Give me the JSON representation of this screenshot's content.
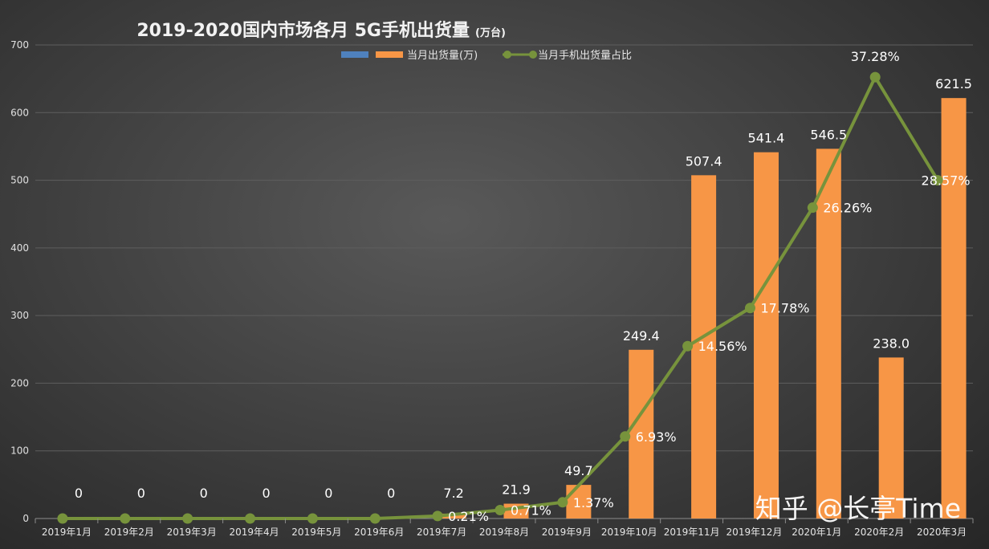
{
  "watermark": "知乎 @长亭Time",
  "chart_data": {
    "type": "bar",
    "title": "2019-2020国内市场各月 5G手机出货量",
    "title_unit": "(万台)",
    "ylim": [
      0,
      700
    ],
    "yticks": [
      0,
      100,
      200,
      300,
      400,
      500,
      600,
      700
    ],
    "categories": [
      "2019年1月",
      "2019年2月",
      "2019年3月",
      "2019年4月",
      "2019年5月",
      "2019年6月",
      "2019年7月",
      "2019年8月",
      "2019年9月",
      "2019年10月",
      "2019年11月",
      "2019年12月",
      "2020年1月",
      "2020年2月",
      "2020年3月"
    ],
    "legend": [
      "",
      "当月出货量(万)",
      "当月手机出货量占比"
    ],
    "legend_position": "top-center",
    "series": [
      {
        "name": "当月出货量(万)",
        "kind": "bar",
        "color": "#f79646",
        "values": [
          0,
          0,
          0,
          0,
          0,
          0,
          7.2,
          21.9,
          49.7,
          249.4,
          507.4,
          541.4,
          546.5,
          238.0,
          621.5
        ],
        "labels": [
          "0",
          "0",
          "0",
          "0",
          "0",
          "0",
          "7.2",
          "21.9",
          "49.7",
          "249.4",
          "507.4",
          "541.4",
          "546.5",
          "238.0",
          "621.5"
        ]
      },
      {
        "name": "当月手机出货量占比",
        "kind": "line",
        "color": "#77933c",
        "values": [
          0,
          0,
          0,
          0,
          0,
          0,
          0.21,
          0.71,
          1.37,
          6.93,
          14.56,
          17.78,
          26.26,
          37.28,
          28.57
        ],
        "labels": [
          "",
          "",
          "",
          "",
          "",
          "",
          "0.21%",
          "0.71%",
          "1.37%",
          "6.93%",
          "14.56%",
          "17.78%",
          "26.26%",
          "37.28%",
          "28.57%"
        ],
        "secondary_max": 40
      }
    ],
    "legend_blank_color": "#4f81bd"
  }
}
